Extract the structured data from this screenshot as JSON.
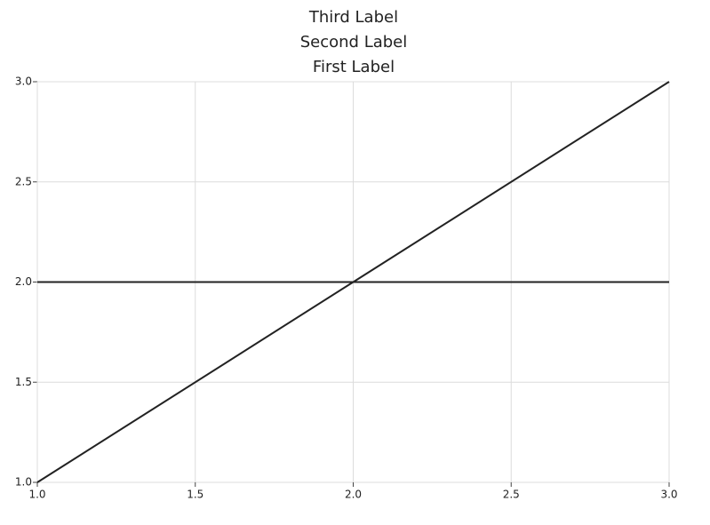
{
  "chart_data": {
    "type": "line",
    "title": [
      "Third Label",
      "Second Label",
      "First Label"
    ],
    "series": [
      {
        "color": "#222222",
        "x": [
          1,
          2,
          3
        ],
        "values": [
          1,
          2,
          3
        ]
      },
      {
        "color": "#222222",
        "x": [
          1,
          3
        ],
        "values": [
          2,
          2
        ]
      }
    ],
    "xlim": [
      1,
      3
    ],
    "xticks": [
      {
        "value": 1,
        "label": "1.0"
      },
      1.5,
      {
        "value": 2,
        "label": "2.0"
      },
      2.5,
      {
        "value": 3,
        "label": "3.0"
      }
    ],
    "ylim": [
      1,
      3
    ],
    "yticks": [
      {
        "value": 1,
        "label": "1.0"
      },
      1.5,
      {
        "value": 2,
        "label": "2.0"
      },
      2.5,
      {
        "value": 3,
        "label": "3.0"
      }
    ],
    "grid": true
  }
}
